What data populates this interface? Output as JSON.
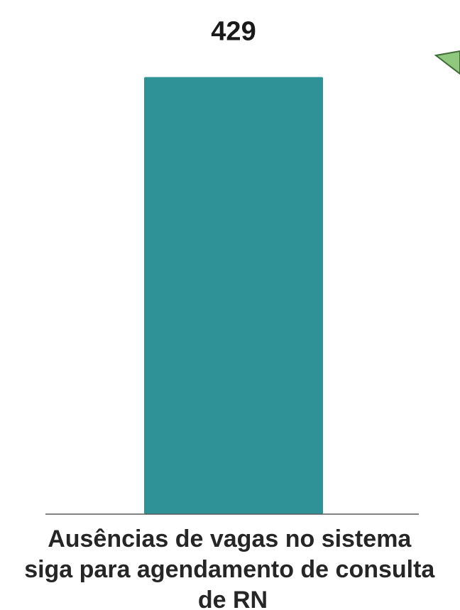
{
  "chart_data": {
    "type": "bar",
    "categories": [
      "Ausências de vagas no sistema siga para agendamento de consulta de  RN"
    ],
    "category_label_lines": [
      "Ausências de vagas no sistema",
      "siga para agendamento de consulta",
      "de  RN"
    ],
    "values": [
      429
    ],
    "data_labels": [
      "429"
    ],
    "ylim": [
      0,
      460
    ],
    "grid": false,
    "legend": "none",
    "colors": {
      "bar": "#2e9296",
      "axis": "#595959",
      "decoration_fill": "#8fc97e",
      "decoration_stroke": "#3f6b35"
    }
  }
}
